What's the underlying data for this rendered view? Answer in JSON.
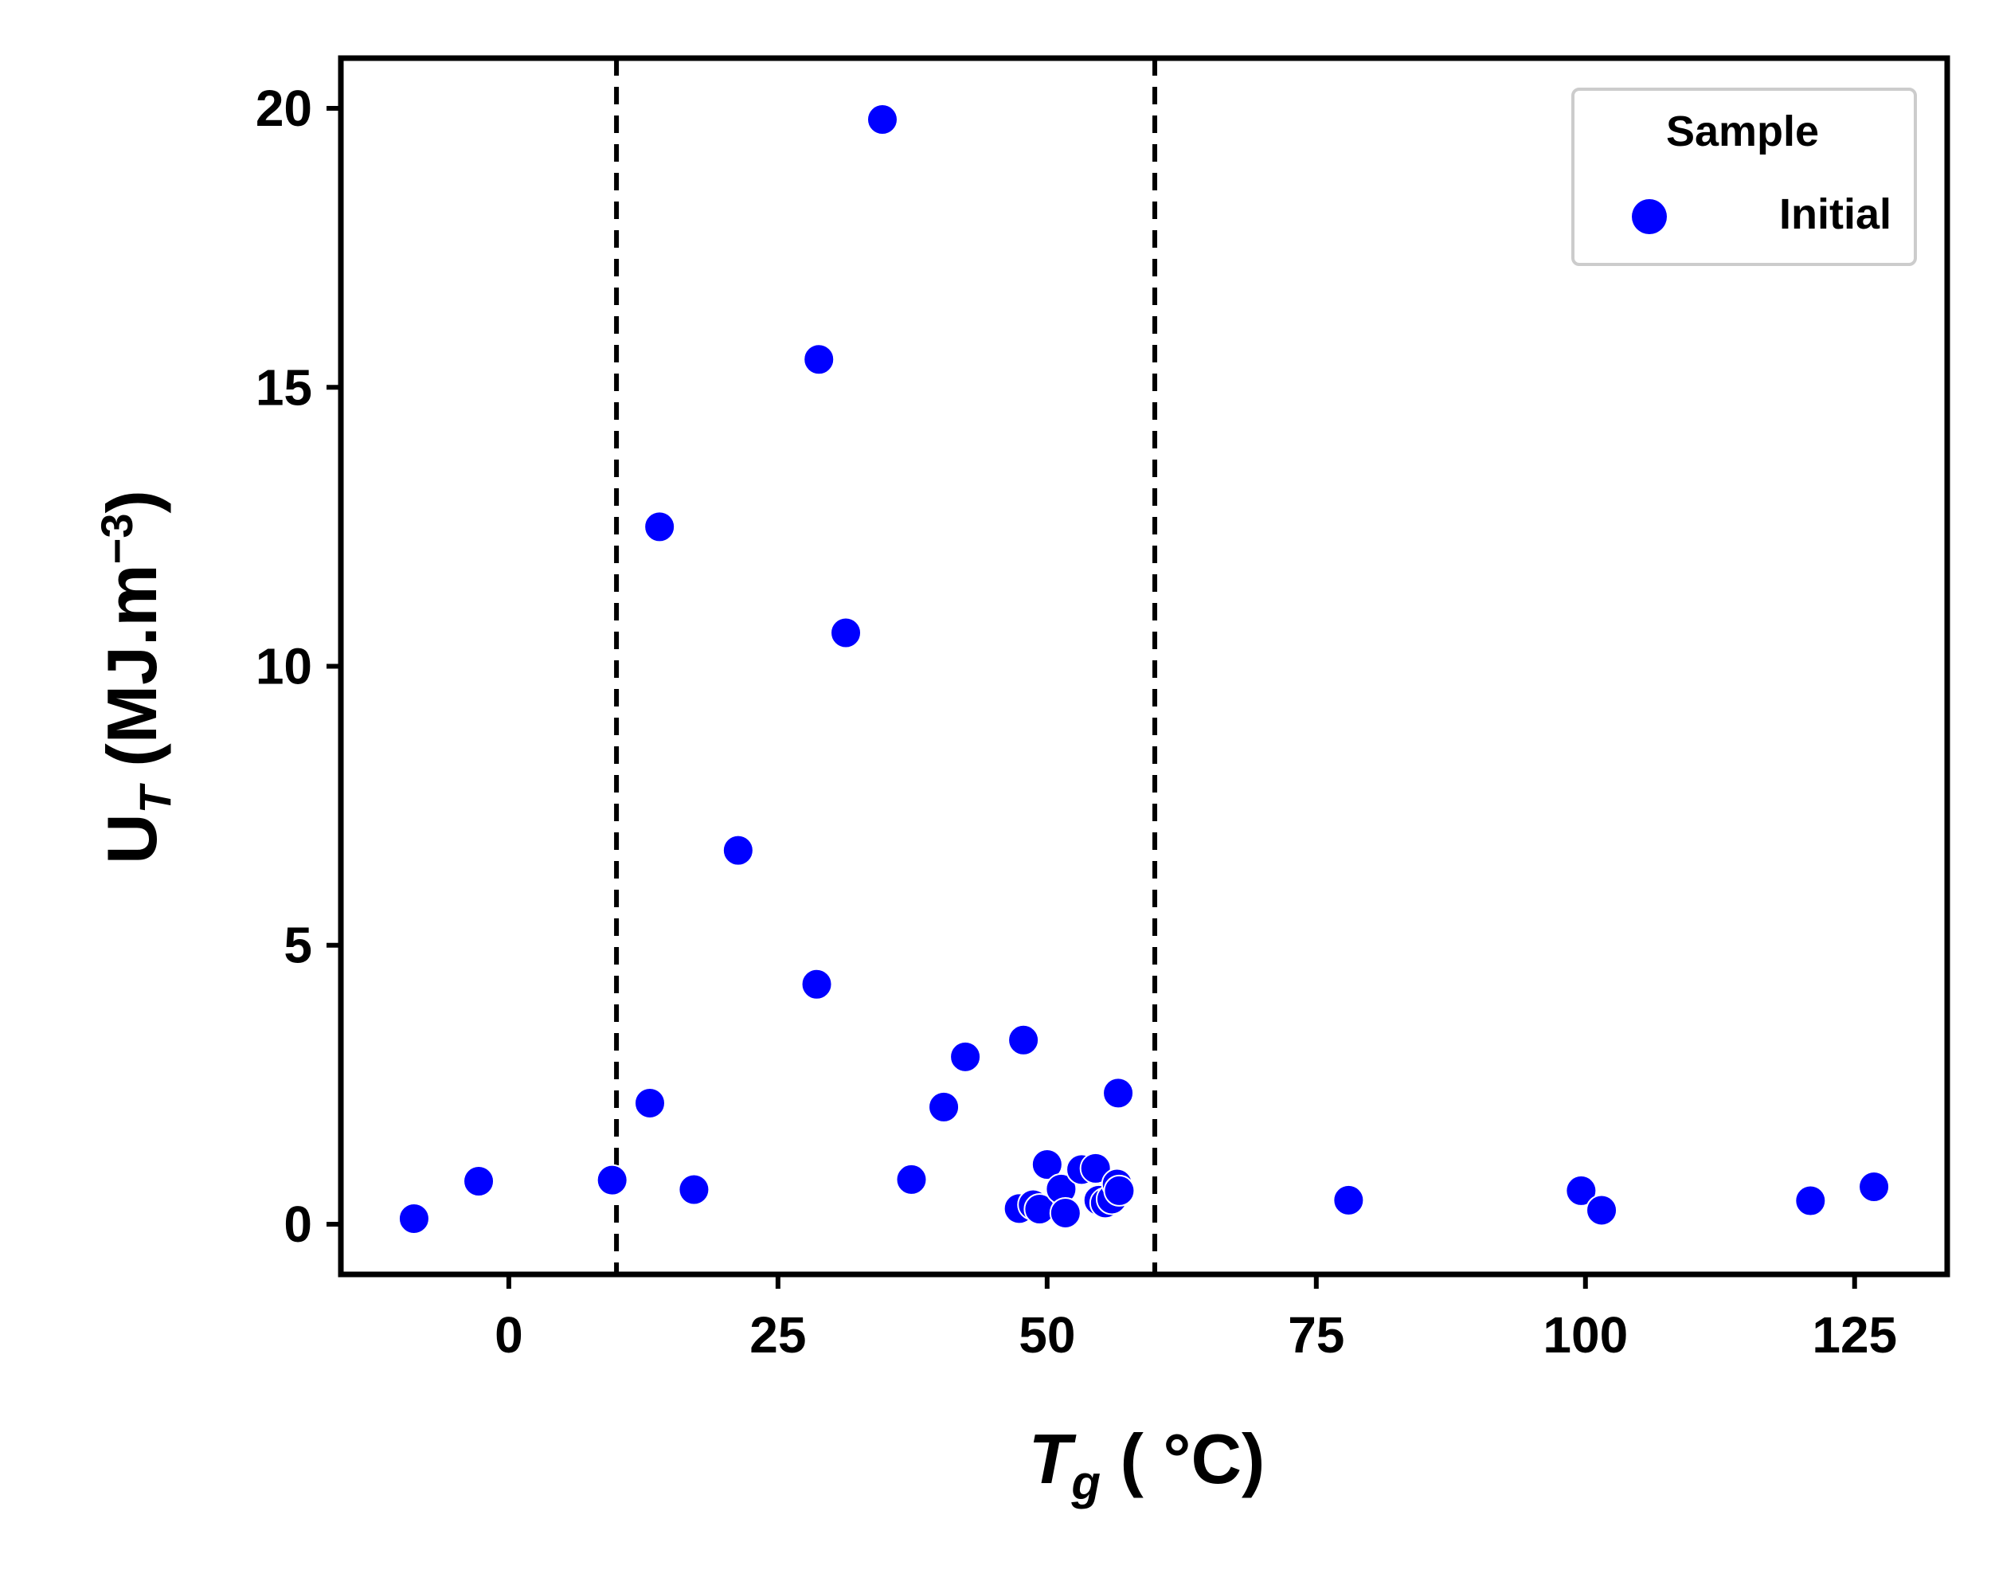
{
  "chart_data": {
    "type": "scatter",
    "xlabel": {
      "main": "T",
      "sub": "g",
      "rest": " ( °C)"
    },
    "ylabel": {
      "main": "U",
      "sub": "T",
      "unit_base": " (MJ.m",
      "unit_sup": "−3",
      "unit_close": ")"
    },
    "xlim": [
      -15.6,
      133.6
    ],
    "ylim": [
      -0.9,
      20.9
    ],
    "xticks": [
      0,
      25,
      50,
      75,
      100,
      125
    ],
    "yticks": [
      0,
      5,
      10,
      15,
      20
    ],
    "vlines": [
      10,
      60
    ],
    "grid": false,
    "legend": {
      "title": "Sample",
      "placement": "top-right",
      "entries": [
        "Initial"
      ]
    },
    "colors": {
      "marker": "#0000ff",
      "marker_edge": "#ffffff",
      "axes": "#000000",
      "legend_border": "#cccccc"
    },
    "series": [
      {
        "name": "Initial",
        "points": [
          [
            -8.8,
            0.1
          ],
          [
            -2.8,
            0.77
          ],
          [
            9.6,
            0.79
          ],
          [
            13.1,
            2.17
          ],
          [
            14.0,
            12.5
          ],
          [
            17.2,
            0.62
          ],
          [
            21.3,
            6.7
          ],
          [
            28.6,
            4.3
          ],
          [
            28.8,
            15.5
          ],
          [
            31.3,
            10.6
          ],
          [
            34.7,
            19.8
          ],
          [
            37.4,
            0.8
          ],
          [
            40.4,
            2.1
          ],
          [
            42.4,
            3.0
          ],
          [
            47.4,
            0.28
          ],
          [
            47.8,
            3.3
          ],
          [
            48.7,
            0.35
          ],
          [
            49.3,
            0.27
          ],
          [
            50.0,
            1.07
          ],
          [
            51.3,
            0.63
          ],
          [
            51.7,
            0.2
          ],
          [
            53.2,
            0.98
          ],
          [
            54.5,
            1.0
          ],
          [
            54.8,
            0.43
          ],
          [
            55.4,
            0.38
          ],
          [
            56.0,
            0.45
          ],
          [
            56.5,
            0.72
          ],
          [
            56.6,
            2.35
          ],
          [
            56.7,
            0.6
          ],
          [
            78.0,
            0.43
          ],
          [
            99.6,
            0.6
          ],
          [
            101.5,
            0.25
          ],
          [
            120.9,
            0.42
          ],
          [
            126.8,
            0.67
          ]
        ]
      }
    ]
  }
}
